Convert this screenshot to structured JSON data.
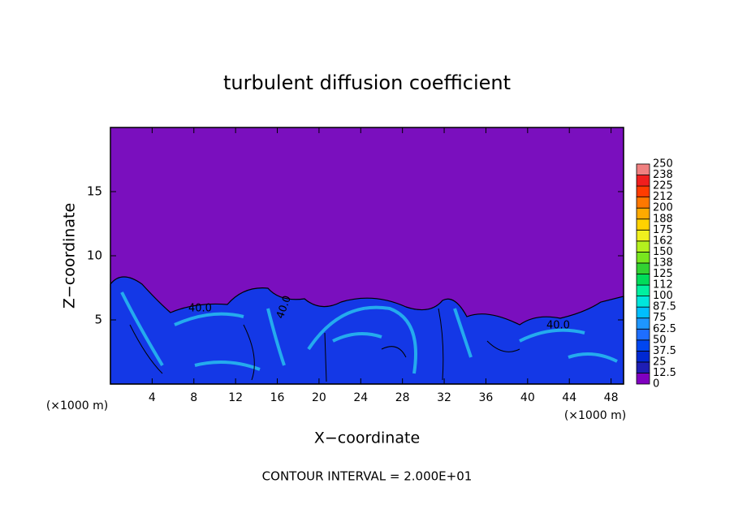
{
  "chart_data": {
    "type": "contour",
    "title": "turbulent diffusion coefficient",
    "x_label": "X−coordinate",
    "y_label": "Z−coordinate",
    "x_unit": "(×1000 m)",
    "footer": "CONTOUR INTERVAL = 2.000E+01",
    "contour_labels": [
      "40.0",
      "40.0",
      "40.0"
    ],
    "xlim": [
      0,
      49.2
    ],
    "xticks": [
      4,
      8,
      12,
      16,
      20,
      24,
      28,
      32,
      36,
      40,
      44,
      48
    ],
    "ylim": [
      0,
      20
    ],
    "yticks": [
      5,
      10,
      15
    ],
    "colorbar": {
      "levels": [
        0,
        12.5,
        25,
        37.5,
        50,
        62.5,
        75,
        87.5,
        100,
        112,
        125,
        138,
        150,
        162,
        175,
        188,
        200,
        212,
        225,
        238,
        250
      ],
      "colors": [
        "#8000c0",
        "#1e1eb4",
        "#0028d2",
        "#0046f0",
        "#1e6eff",
        "#1e96ff",
        "#00beff",
        "#00e6dc",
        "#00f0a0",
        "#00dc5a",
        "#32d232",
        "#78e61e",
        "#b4f01e",
        "#f0f01e",
        "#ffd200",
        "#ffaa00",
        "#ff7800",
        "#ff3c00",
        "#f01e1e",
        "#f08080"
      ]
    }
  }
}
